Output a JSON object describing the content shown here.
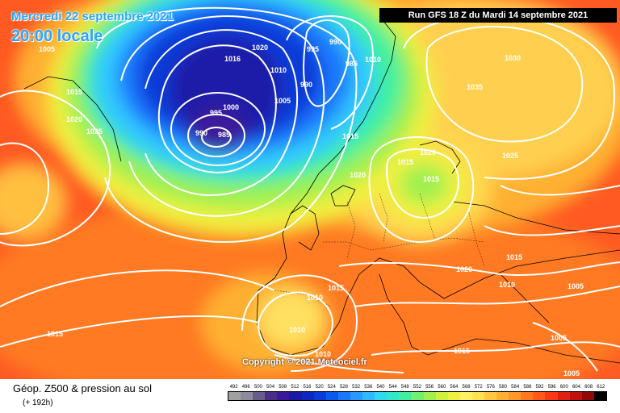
{
  "header": {
    "date_line": "Mercredi 22 septembre 2021",
    "hour_line": "20:00 locale",
    "run_info": "Run GFS 18 Z du Mardi 14 septembre 2021"
  },
  "footer": {
    "copyright": "Copyright © 2021 Meteociel.fr",
    "legend_title": "Géop. Z500 & pression au sol",
    "legend_subtitle": "(+ 192h)"
  },
  "isobar_labels": [
    "1005",
    "1015",
    "1020",
    "1025",
    "1025",
    "1016",
    "1020",
    "1010",
    "995",
    "990",
    "985",
    "990",
    "1005",
    "1000",
    "995",
    "990",
    "985",
    "1010",
    "1030",
    "1035",
    "1025",
    "1015",
    "1020",
    "1015",
    "1020",
    "1015",
    "1015",
    "1010",
    "1020",
    "1015",
    "1010",
    "1005",
    "1005",
    "1005",
    "1015",
    "1015",
    "1010",
    "1010",
    "1005",
    "1015",
    "1005"
  ],
  "scale": {
    "labels": [
      "492",
      "496",
      "500",
      "504",
      "508",
      "512",
      "516",
      "520",
      "524",
      "528",
      "532",
      "536",
      "540",
      "544",
      "548",
      "552",
      "556",
      "560",
      "564",
      "568",
      "572",
      "576",
      "580",
      "584",
      "588",
      "592",
      "596",
      "600",
      "604",
      "608",
      "612"
    ],
    "colors": [
      "#a0a0a0",
      "#8c8c9c",
      "#6a5c8a",
      "#4b2e8a",
      "#3a1a9a",
      "#1a1aa8",
      "#1026c0",
      "#0a3ad8",
      "#0a5af0",
      "#1a78ff",
      "#2a98ff",
      "#30b8ff",
      "#30d8f0",
      "#30e8c8",
      "#40f0a0",
      "#70f070",
      "#a0f050",
      "#d0f040",
      "#f0f040",
      "#fff060",
      "#ffe050",
      "#ffc840",
      "#ffb030",
      "#ff9828",
      "#ff7820",
      "#ff5818",
      "#f83818",
      "#e02010",
      "#c01010",
      "#900808",
      "#000000"
    ]
  }
}
